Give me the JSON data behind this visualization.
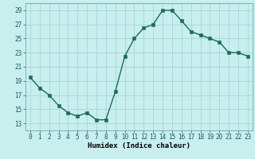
{
  "x": [
    0,
    1,
    2,
    3,
    4,
    5,
    6,
    7,
    8,
    9,
    10,
    11,
    12,
    13,
    14,
    15,
    16,
    17,
    18,
    19,
    20,
    21,
    22,
    23
  ],
  "y": [
    19.5,
    18.0,
    17.0,
    15.5,
    14.5,
    14.0,
    14.5,
    13.5,
    13.5,
    17.5,
    22.5,
    25.0,
    26.5,
    27.0,
    29.0,
    29.0,
    27.5,
    26.0,
    25.5,
    25.0,
    24.5,
    23.0,
    23.0,
    22.5
  ],
  "line_color": "#1a6b5a",
  "marker_color": "#1a6b5a",
  "bg_color": "#c8eeee",
  "grid_color": "#aad4d4",
  "xlabel": "Humidex (Indice chaleur)",
  "ylim": [
    12,
    30
  ],
  "xlim": [
    -0.5,
    23.5
  ],
  "yticks": [
    13,
    15,
    17,
    19,
    21,
    23,
    25,
    27,
    29
  ],
  "xticks": [
    0,
    1,
    2,
    3,
    4,
    5,
    6,
    7,
    8,
    9,
    10,
    11,
    12,
    13,
    14,
    15,
    16,
    17,
    18,
    19,
    20,
    21,
    22,
    23
  ],
  "xtick_labels": [
    "0",
    "1",
    "2",
    "3",
    "4",
    "5",
    "6",
    "7",
    "8",
    "9",
    "10",
    "11",
    "12",
    "13",
    "14",
    "15",
    "16",
    "17",
    "18",
    "19",
    "20",
    "21",
    "22",
    "23"
  ],
  "tick_fontsize": 5.5,
  "xlabel_fontsize": 6.5,
  "linewidth": 1.0,
  "markersize": 2.2
}
